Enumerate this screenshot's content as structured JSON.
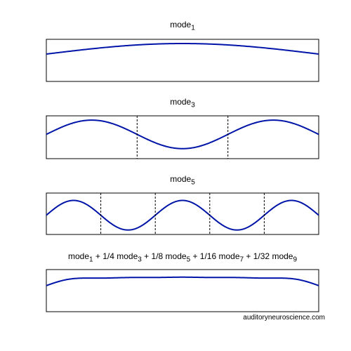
{
  "chart_data": [
    {
      "type": "line",
      "title": "mode1",
      "title_parts": {
        "base": "mode",
        "sub": "1"
      },
      "mode": 1,
      "series": [
        {
          "component_modes": [
            1
          ],
          "weights": [
            1
          ]
        }
      ],
      "node_positions": [],
      "ylim": [
        -2.6,
        1.4
      ],
      "xlim": [
        0,
        1
      ],
      "grid": false,
      "line_color": "#0014a8"
    },
    {
      "type": "line",
      "title": "mode3",
      "title_parts": {
        "base": "mode",
        "sub": "3"
      },
      "mode": 3,
      "series": [
        {
          "component_modes": [
            3
          ],
          "weights": [
            1
          ]
        }
      ],
      "node_positions": [
        0.3333,
        0.6667
      ],
      "ylim": [
        -1.7,
        1.3
      ],
      "xlim": [
        0,
        1
      ],
      "grid": false,
      "line_color": "#0014a8"
    },
    {
      "type": "line",
      "title": "mode5",
      "title_parts": {
        "base": "mode",
        "sub": "5"
      },
      "mode": 5,
      "series": [
        {
          "component_modes": [
            5
          ],
          "weights": [
            1
          ]
        }
      ],
      "node_positions": [
        0.2,
        0.4,
        0.6,
        0.8
      ],
      "ylim": [
        -1.3,
        1.5
      ],
      "xlim": [
        0,
        1
      ],
      "grid": false,
      "line_color": "#0014a8"
    },
    {
      "type": "line",
      "title": "mode1 + 1/4 mode3 + 1/8 mode5 + 1/16 mode7 + 1/32 mode9",
      "title_parts": [
        {
          "text": "mode",
          "sub": "1"
        },
        {
          "text": " + 1/4 mode",
          "sub": "3"
        },
        {
          "text": " + 1/8 mode",
          "sub": "5"
        },
        {
          "text": " + 1/16 mode",
          "sub": "7"
        },
        {
          "text": " + 1/32 mode",
          "sub": "9"
        }
      ],
      "series": [
        {
          "component_modes": [
            1,
            3,
            5,
            7,
            9
          ],
          "weights": [
            1,
            0.25,
            0.125,
            0.0625,
            0.03125
          ]
        }
      ],
      "node_positions": [],
      "ylim": [
        -2.6,
        1.6
      ],
      "xlim": [
        0,
        1
      ],
      "grid": false,
      "line_color": "#0014a8"
    }
  ],
  "credit": "auditoryneuroscience.com"
}
